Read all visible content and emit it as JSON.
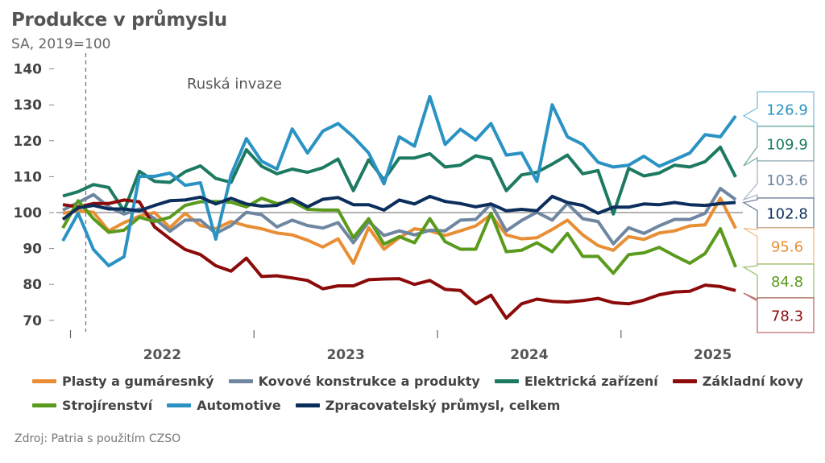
{
  "chart_data": {
    "type": "line",
    "title": "Produkce v průmyslu",
    "subtitle": "SA, 2019=100",
    "source": "Zdroj: Patria s použitím CZSO",
    "annotation": {
      "label": "Ruská invaze",
      "date": "2022-02"
    },
    "ylim": [
      70,
      140
    ],
    "yticks": [
      70,
      80,
      90,
      100,
      110,
      120,
      130,
      140
    ],
    "reference_line": 100,
    "xtick_labels": [
      "2022",
      "2023",
      "2024",
      "2025"
    ],
    "legend_placement": "bottom",
    "x": [
      "2021-12",
      "2022-01",
      "2022-02",
      "2022-03",
      "2022-04",
      "2022-05",
      "2022-06",
      "2022-07",
      "2022-08",
      "2022-09",
      "2022-10",
      "2022-11",
      "2022-12",
      "2023-01",
      "2023-02",
      "2023-03",
      "2023-04",
      "2023-05",
      "2023-06",
      "2023-07",
      "2023-08",
      "2023-09",
      "2023-10",
      "2023-11",
      "2023-12",
      "2024-01",
      "2024-02",
      "2024-03",
      "2024-04",
      "2024-05",
      "2024-06",
      "2024-07",
      "2024-08",
      "2024-09",
      "2024-10",
      "2024-11",
      "2024-12",
      "2025-01",
      "2025-02",
      "2025-03",
      "2025-04",
      "2025-05",
      "2025-06",
      "2025-07",
      "2025-08"
    ],
    "series": [
      {
        "name": "Plasty a gumáresnký",
        "color": "#e88f35",
        "last_label": "95.6",
        "values": [
          99.8,
          100.5,
          100.1,
          94.9,
          97.2,
          99.0,
          100.0,
          95.8,
          99.8,
          96.4,
          95.5,
          97.5,
          96.3,
          95.5,
          94.3,
          93.8,
          92.3,
          90.4,
          92.7,
          85.9,
          95.8,
          89.8,
          93.0,
          95.5,
          94.9,
          93.6,
          94.9,
          96.3,
          99.4,
          93.8,
          92.7,
          93.0,
          95.3,
          97.9,
          93.8,
          90.8,
          89.5,
          93.3,
          92.5,
          94.3,
          94.9,
          96.3,
          96.6,
          104.0,
          95.6
        ]
      },
      {
        "name": "Kovové konstrukce a produkty",
        "color": "#6f86a1",
        "last_label": "103.6",
        "values": [
          100.7,
          102.8,
          105.0,
          101.6,
          99.6,
          101.0,
          98.3,
          94.8,
          97.9,
          97.9,
          94.2,
          96.4,
          100.1,
          99.4,
          96.0,
          97.9,
          96.4,
          95.7,
          97.2,
          91.6,
          97.5,
          93.6,
          94.9,
          93.8,
          95.1,
          94.9,
          97.9,
          98.1,
          102.4,
          94.9,
          97.8,
          100.1,
          97.9,
          102.5,
          98.3,
          97.5,
          91.3,
          95.8,
          94.2,
          96.3,
          98.1,
          98.1,
          99.8,
          106.7,
          103.6
        ]
      },
      {
        "name": "Elektrická zařízení",
        "color": "#1d7a62",
        "last_label": "109.9",
        "values": [
          104.6,
          105.8,
          107.8,
          107.0,
          100.5,
          111.5,
          108.7,
          108.4,
          111.4,
          113.0,
          109.5,
          108.4,
          117.5,
          112.9,
          110.8,
          112.1,
          111.2,
          112.5,
          114.9,
          106.1,
          114.7,
          109.1,
          115.2,
          115.2,
          116.4,
          112.7,
          113.2,
          115.8,
          114.9,
          106.1,
          110.5,
          111.2,
          113.5,
          116.0,
          110.8,
          111.7,
          99.6,
          112.3,
          110.2,
          111.0,
          113.2,
          112.7,
          114.2,
          118.2,
          109.9
        ]
      },
      {
        "name": "Základní kovy",
        "color": "#8c0a0a",
        "last_label": "78.3",
        "values": [
          102.2,
          101.6,
          102.5,
          102.5,
          103.5,
          103.0,
          96.0,
          92.7,
          89.7,
          88.3,
          85.2,
          83.7,
          87.3,
          82.2,
          82.4,
          81.8,
          81.1,
          78.8,
          79.6,
          79.6,
          81.3,
          81.5,
          81.6,
          80.0,
          81.1,
          78.6,
          78.3,
          74.6,
          77.0,
          70.6,
          74.6,
          75.9,
          75.3,
          75.1,
          75.5,
          76.1,
          74.9,
          74.6,
          75.6,
          77.1,
          77.9,
          78.1,
          79.8,
          79.4,
          78.3
        ]
      },
      {
        "name": "Strojírenství",
        "color": "#5a9a1c",
        "last_label": "84.8",
        "values": [
          95.7,
          103.3,
          98.3,
          94.5,
          95.1,
          98.7,
          97.5,
          98.7,
          102.0,
          103.0,
          103.1,
          102.9,
          101.6,
          104.0,
          102.5,
          103.1,
          100.9,
          100.7,
          100.7,
          93.0,
          98.3,
          91.2,
          93.3,
          91.6,
          98.3,
          91.9,
          89.8,
          89.8,
          99.8,
          89.1,
          89.5,
          91.6,
          89.1,
          94.2,
          87.8,
          87.8,
          83.1,
          88.3,
          88.8,
          90.3,
          88.0,
          85.9,
          88.6,
          95.5,
          84.8
        ]
      },
      {
        "name": "Automotive",
        "color": "#2a93c4",
        "last_label": "126.9",
        "values": [
          92.1,
          99.8,
          89.7,
          85.2,
          87.7,
          110.1,
          110.1,
          111.0,
          107.6,
          108.3,
          92.6,
          110.5,
          120.6,
          114.3,
          112.1,
          123.3,
          116.6,
          122.7,
          124.8,
          121.1,
          116.6,
          108.0,
          121.1,
          118.5,
          132.3,
          119.0,
          123.2,
          120.2,
          124.8,
          116.0,
          116.6,
          108.7,
          130.0,
          121.1,
          119.0,
          114.0,
          112.7,
          113.2,
          115.7,
          112.9,
          114.7,
          116.6,
          121.7,
          121.1,
          126.9
        ]
      },
      {
        "name": "Zpracovatelský průmysl, celkem",
        "color": "#0c2e5c",
        "last_label": "102.8",
        "values": [
          98.1,
          101.3,
          102.0,
          101.0,
          101.0,
          100.5,
          102.0,
          103.3,
          103.5,
          104.3,
          102.4,
          104.0,
          102.4,
          101.8,
          102.0,
          103.9,
          101.6,
          103.7,
          104.2,
          102.2,
          102.2,
          100.7,
          103.5,
          102.4,
          104.5,
          103.1,
          102.5,
          101.6,
          102.4,
          100.5,
          100.9,
          100.5,
          104.5,
          102.8,
          102.0,
          99.8,
          101.5,
          101.5,
          102.4,
          102.2,
          102.8,
          102.2,
          102.0,
          102.5,
          102.8
        ]
      }
    ],
    "callout_order": [
      5,
      2,
      1,
      6,
      0,
      4,
      3
    ]
  }
}
